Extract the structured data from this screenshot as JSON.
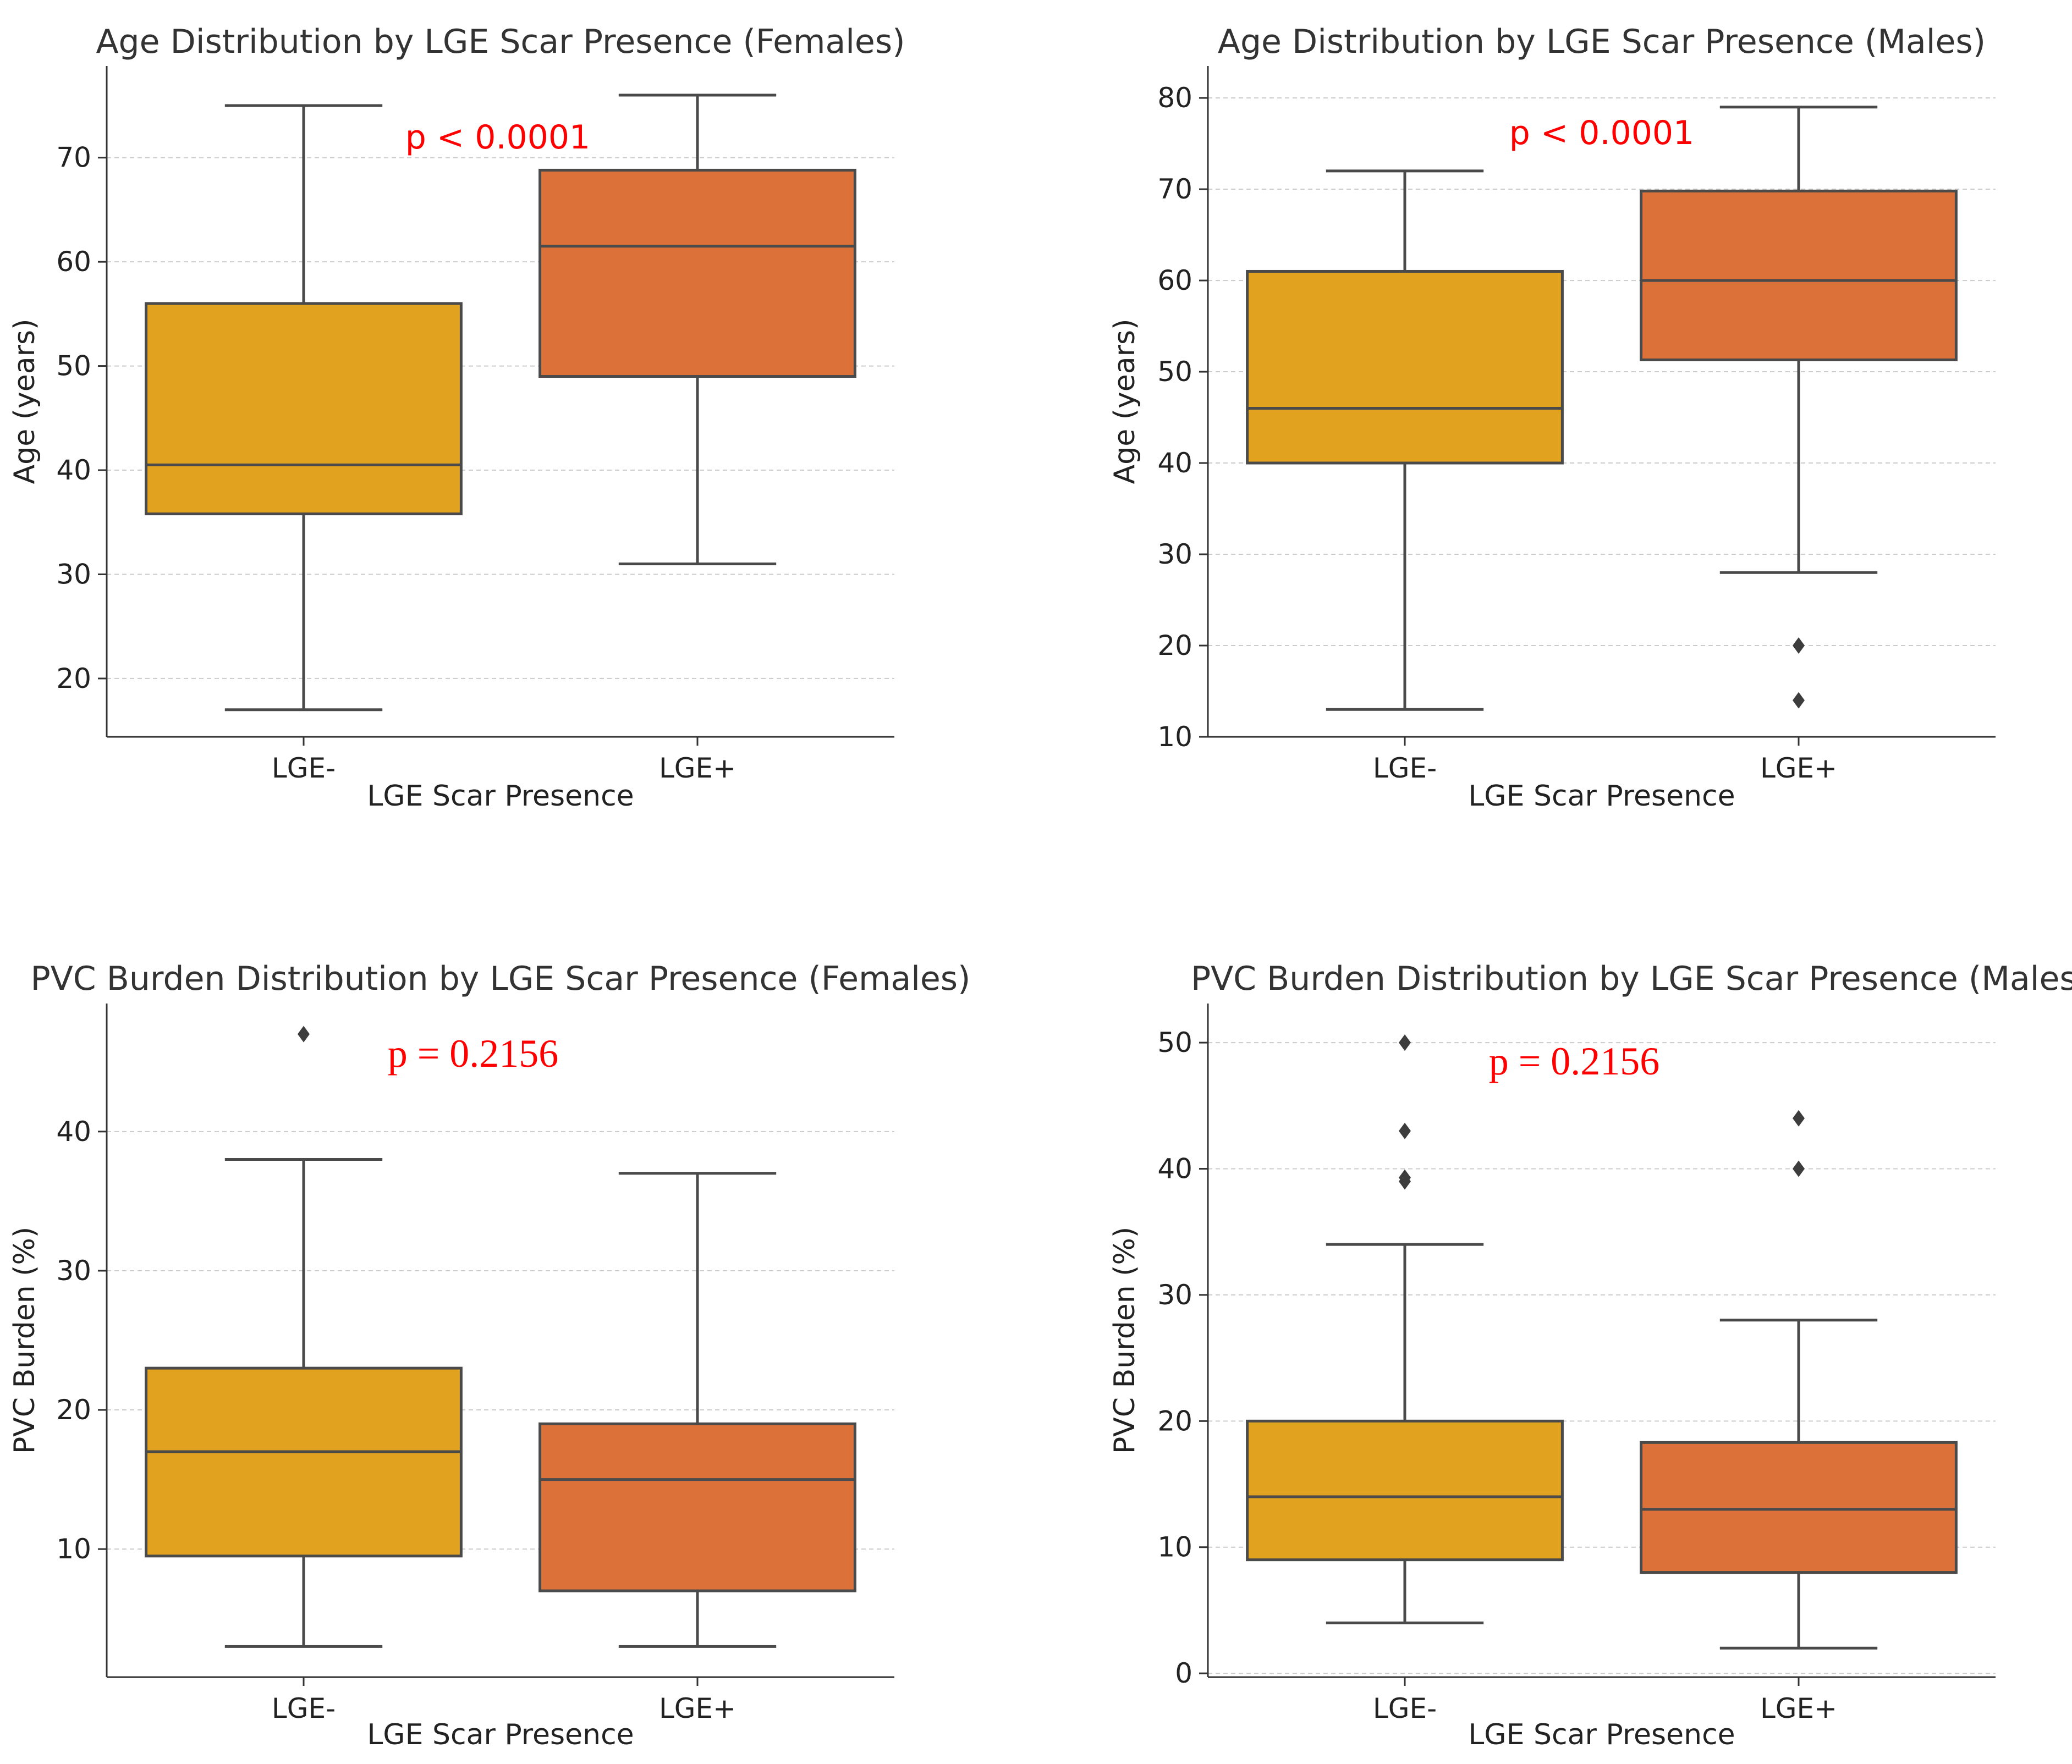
{
  "chart_data": [
    {
      "type": "box",
      "title": "Age Distribution by LGE Scar Presence (Females)",
      "xlabel": "LGE Scar Presence",
      "ylabel": "Age (years)",
      "categories": [
        "LGE-",
        "LGE+"
      ],
      "ylim": [
        14.4,
        78.8
      ],
      "yticks": [
        20,
        30,
        40,
        50,
        60,
        70
      ],
      "grid": true,
      "annotation": "p < 0.0001",
      "annotation_style": "sans",
      "boxes": [
        {
          "label": "LGE-",
          "whisker_low": 17,
          "q1": 35.8,
          "median": 40.5,
          "q3": 56,
          "whisker_high": 75,
          "outliers": [],
          "color": "#e0a21f"
        },
        {
          "label": "LGE+",
          "whisker_low": 31,
          "q1": 49,
          "median": 61.5,
          "q3": 68.8,
          "whisker_high": 76,
          "outliers": [],
          "color": "#dd713a"
        }
      ]
    },
    {
      "type": "box",
      "title": "Age Distribution by LGE Scar Presence (Males)",
      "xlabel": "LGE Scar Presence",
      "ylabel": "Age (years)",
      "categories": [
        "LGE-",
        "LGE+"
      ],
      "ylim": [
        10,
        83.5
      ],
      "yticks": [
        10,
        20,
        30,
        40,
        50,
        60,
        70,
        80
      ],
      "grid": true,
      "annotation": "p < 0.0001",
      "annotation_style": "sans",
      "boxes": [
        {
          "label": "LGE-",
          "whisker_low": 13,
          "q1": 40,
          "median": 46,
          "q3": 61,
          "whisker_high": 72,
          "outliers": [],
          "color": "#e0a21f"
        },
        {
          "label": "LGE+",
          "whisker_low": 28,
          "q1": 51.3,
          "median": 60,
          "q3": 69.8,
          "whisker_high": 79,
          "outliers": [
            20,
            14
          ],
          "color": "#dd713a"
        }
      ]
    },
    {
      "type": "box",
      "title": "PVC Burden Distribution by LGE Scar Presence (Females)",
      "xlabel": "LGE Scar Presence",
      "ylabel": "PVC Burden (%)",
      "categories": [
        "LGE-",
        "LGE+"
      ],
      "ylim": [
        0.8,
        49.2
      ],
      "yticks": [
        10,
        20,
        30,
        40
      ],
      "grid": true,
      "annotation": "p = 0.2156",
      "annotation_style": "serif",
      "boxes": [
        {
          "label": "LGE-",
          "whisker_low": 3,
          "q1": 9.5,
          "median": 17,
          "q3": 23,
          "whisker_high": 38,
          "outliers": [
            47
          ],
          "color": "#e0a21f"
        },
        {
          "label": "LGE+",
          "whisker_low": 3,
          "q1": 7,
          "median": 15,
          "q3": 19,
          "whisker_high": 37,
          "outliers": [],
          "color": "#dd713a"
        }
      ]
    },
    {
      "type": "box",
      "title": "PVC Burden Distribution by LGE Scar Presence (Males)",
      "xlabel": "LGE Scar Presence",
      "ylabel": "PVC Burden (%)",
      "categories": [
        "LGE-",
        "LGE+"
      ],
      "ylim": [
        -0.3,
        53.1
      ],
      "yticks": [
        0,
        10,
        20,
        30,
        40,
        50
      ],
      "grid": true,
      "annotation": "p = 0.2156",
      "annotation_style": "serif",
      "boxes": [
        {
          "label": "LGE-",
          "whisker_low": 4,
          "q1": 9,
          "median": 14,
          "q3": 20,
          "whisker_high": 34,
          "outliers": [
            50,
            43,
            39.3,
            39
          ],
          "color": "#e0a21f"
        },
        {
          "label": "LGE+",
          "whisker_low": 2,
          "q1": 8,
          "median": 13,
          "q3": 18.3,
          "whisker_high": 28,
          "outliers": [
            44,
            40
          ],
          "color": "#dd713a"
        }
      ]
    }
  ]
}
